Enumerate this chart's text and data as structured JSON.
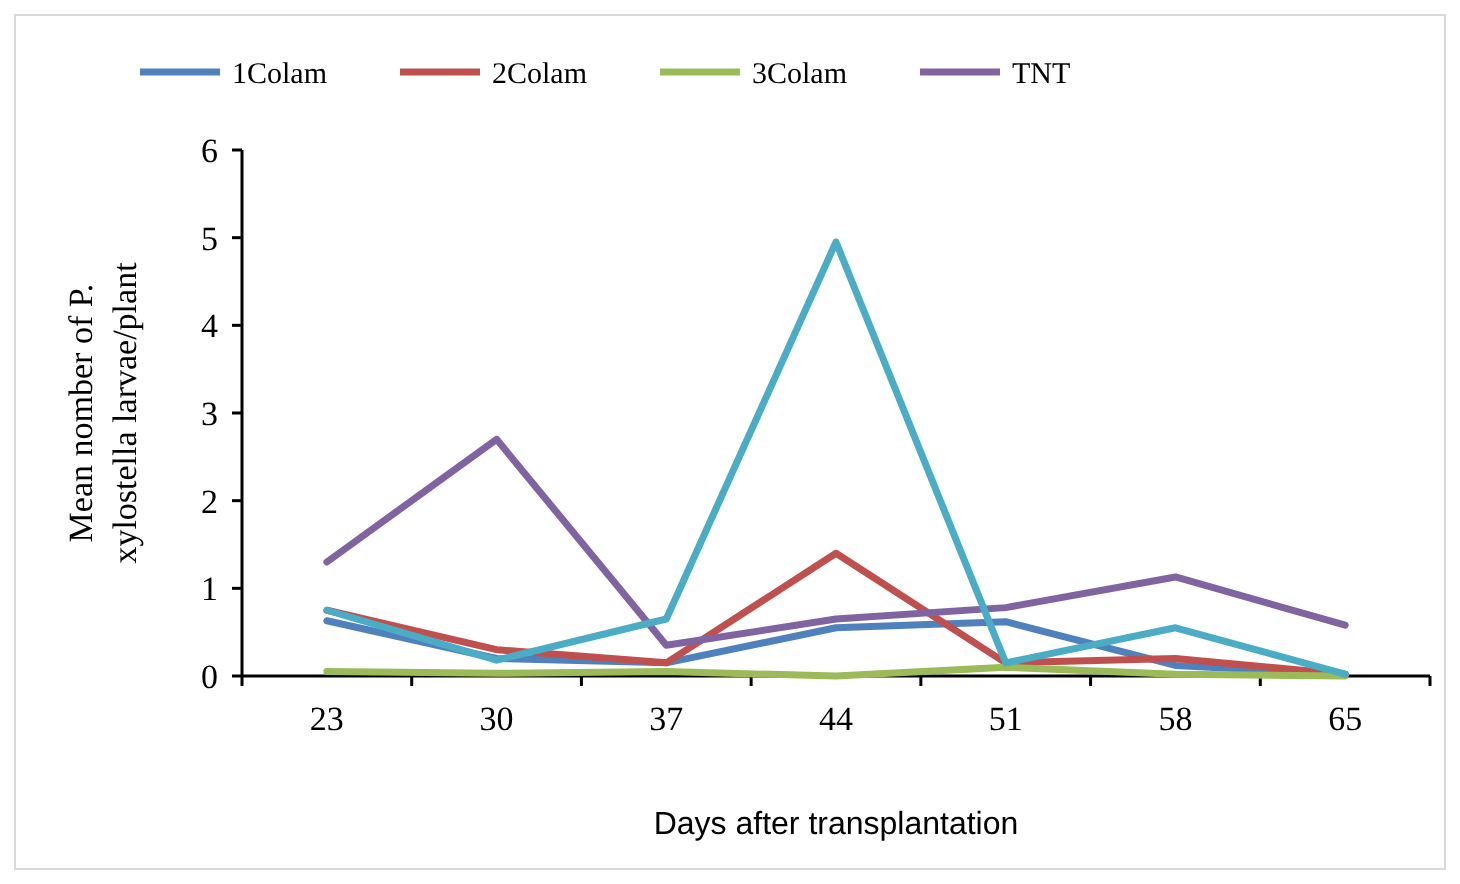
{
  "chart_data": {
    "type": "line",
    "xlabel": "Days after transplantation",
    "ylabel": "Mean nomber of P. xylostella larvae/plant",
    "categories": [
      "23",
      "30",
      "37",
      "44",
      "51",
      "58",
      "65"
    ],
    "ylim": [
      0,
      6
    ],
    "yticks": [
      0,
      1,
      2,
      3,
      4,
      5,
      6
    ],
    "legend": "top",
    "grid": false,
    "marker": "none",
    "series": [
      {
        "name": "1Colam",
        "color": "#4f81bd",
        "values": [
          0.63,
          0.2,
          0.15,
          0.55,
          0.62,
          0.12,
          0.02
        ]
      },
      {
        "name": "2Colam",
        "color": "#c0504d",
        "values": [
          0.75,
          0.3,
          0.15,
          1.4,
          0.15,
          0.2,
          0.02
        ]
      },
      {
        "name": "3Colam",
        "color": "#9bbb59",
        "values": [
          0.05,
          0.03,
          0.05,
          0,
          0.1,
          0.02,
          0
        ]
      },
      {
        "name": "TNT",
        "color": "#8064a2",
        "values": [
          1.3,
          2.7,
          0.35,
          0.65,
          0.78,
          1.13,
          0.58
        ]
      },
      {
        "color": "#4bacc6",
        "values": [
          0.75,
          0.18,
          0.65,
          4.95,
          0.15,
          0.55,
          0.02
        ]
      }
    ]
  }
}
